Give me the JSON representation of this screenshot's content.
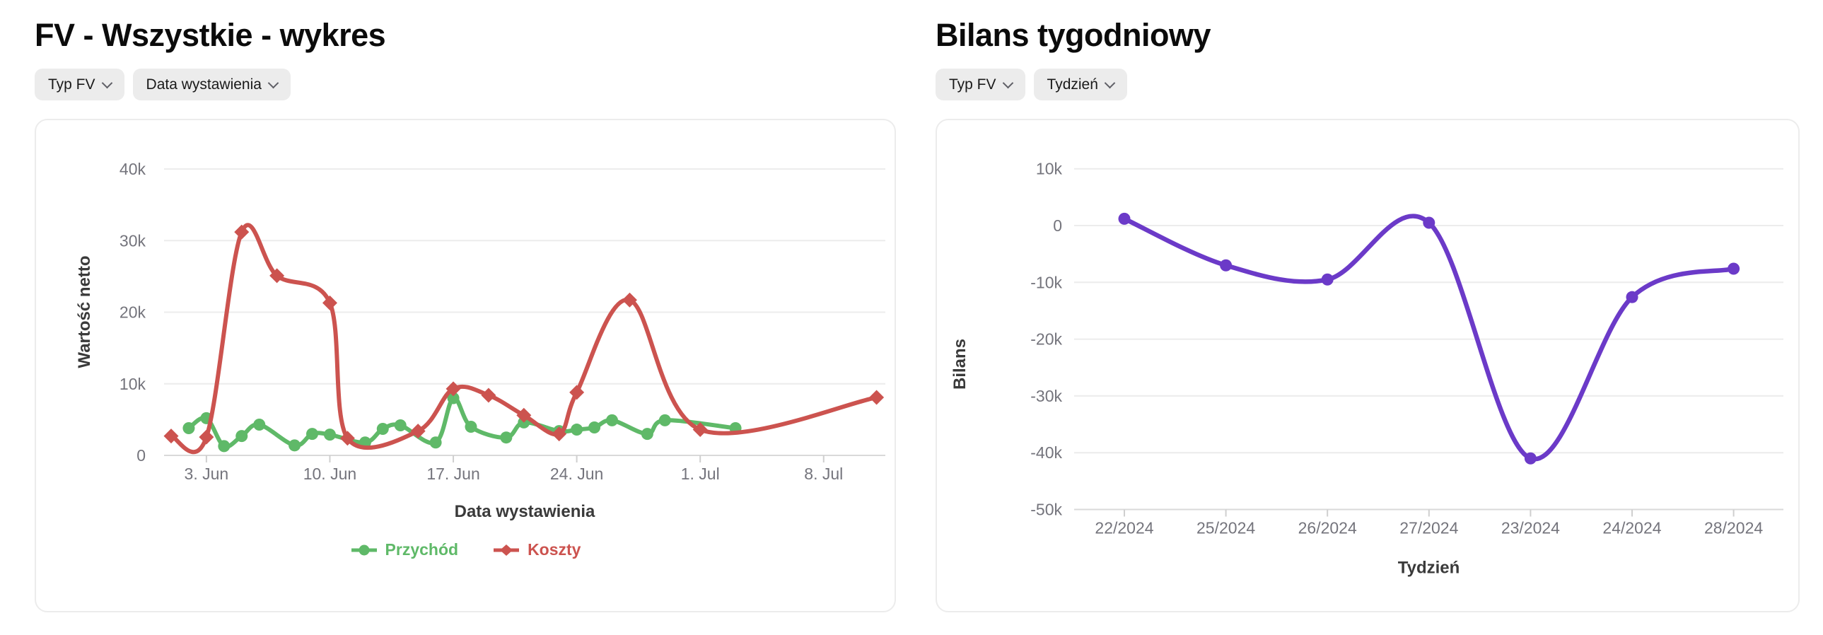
{
  "page": {
    "background": "#ffffff"
  },
  "left_panel": {
    "title": "FV - Wszystkie - wykres",
    "filters": [
      {
        "label": "Typ FV"
      },
      {
        "label": "Data wystawienia"
      }
    ]
  },
  "right_panel": {
    "title": "Bilans tygodniowy",
    "filters": [
      {
        "label": "Typ FV"
      },
      {
        "label": "Tydzień"
      }
    ]
  },
  "colors": {
    "grid": "#ececec",
    "axis_line": "#d9d9d9",
    "tick_mark": "#cfcfcf",
    "tick_text": "#74747c",
    "axis_title_text": "#3a3a3a",
    "pill_bg": "#ececec",
    "title_text": "#0b0b0b",
    "przychod_green": "#5fb968",
    "koszty_red": "#cc534f",
    "bilans_purple": "#6b3ac8"
  },
  "chart_data": [
    {
      "type": "line",
      "title": "FV - Wszystkie - wykres",
      "xlabel": "Data wystawienia",
      "ylabel": "Wartość netto",
      "smooth": true,
      "grid": "horizontal",
      "legend_position": "bottom",
      "x_axis": {
        "unit": "day-offset from 1. Jun",
        "ticks": [
          {
            "label": "3. Jun",
            "day": 2
          },
          {
            "label": "10. Jun",
            "day": 9
          },
          {
            "label": "17. Jun",
            "day": 16
          },
          {
            "label": "24. Jun",
            "day": 23
          },
          {
            "label": "1. Jul",
            "day": 30
          },
          {
            "label": "8. Jul",
            "day": 37
          }
        ]
      },
      "y_axis": {
        "ylim": [
          0,
          45000
        ],
        "ticks": [
          {
            "label": "0",
            "value": 0
          },
          {
            "label": "10k",
            "value": 10000
          },
          {
            "label": "20k",
            "value": 20000
          },
          {
            "label": "30k",
            "value": 30000
          },
          {
            "label": "40k",
            "value": 40000
          }
        ]
      },
      "series": [
        {
          "name": "Przychód",
          "color": "#5fb968",
          "marker": "circle",
          "points_day_value": [
            [
              1,
              3800
            ],
            [
              2,
              5200
            ],
            [
              3,
              1300
            ],
            [
              4,
              2700
            ],
            [
              5,
              4300
            ],
            [
              7,
              1400
            ],
            [
              8,
              3000
            ],
            [
              9,
              2900
            ],
            [
              11,
              1800
            ],
            [
              12,
              3700
            ],
            [
              13,
              4200
            ],
            [
              15,
              1800
            ],
            [
              16,
              8000
            ],
            [
              17,
              4000
            ],
            [
              19,
              2500
            ],
            [
              20,
              4600
            ],
            [
              22,
              3400
            ],
            [
              23,
              3600
            ],
            [
              24,
              3900
            ],
            [
              25,
              4900
            ],
            [
              27,
              3000
            ],
            [
              28,
              4900
            ],
            [
              32,
              3800
            ]
          ]
        },
        {
          "name": "Koszty",
          "color": "#cc534f",
          "marker": "diamond",
          "points_day_value": [
            [
              0,
              2700
            ],
            [
              2,
              2550
            ],
            [
              4,
              31200
            ],
            [
              6,
              25100
            ],
            [
              9,
              21300
            ],
            [
              10,
              2400
            ],
            [
              14,
              3400
            ],
            [
              16,
              9300
            ],
            [
              18,
              8400
            ],
            [
              20,
              5600
            ],
            [
              22,
              3000
            ],
            [
              23,
              8800
            ],
            [
              26,
              21700
            ],
            [
              30,
              3600
            ],
            [
              40,
              8100
            ]
          ]
        }
      ]
    },
    {
      "type": "line",
      "title": "Bilans tygodniowy",
      "xlabel": "Tydzień",
      "ylabel": "Bilans",
      "smooth": true,
      "color": "#6b3ac8",
      "marker": "circle",
      "categories": [
        "22/2024",
        "25/2024",
        "26/2024",
        "27/2024",
        "23/2024",
        "24/2024",
        "28/2024"
      ],
      "values": [
        1200,
        -7000,
        -9500,
        500,
        -41000,
        -12600,
        -7600
      ],
      "y_axis": {
        "ylim": [
          -50000,
          11000
        ],
        "ticks": [
          {
            "label": "10k",
            "value": 10000
          },
          {
            "label": "0",
            "value": 0
          },
          {
            "label": "-10k",
            "value": -10000
          },
          {
            "label": "-20k",
            "value": -20000
          },
          {
            "label": "-30k",
            "value": -30000
          },
          {
            "label": "-40k",
            "value": -40000
          },
          {
            "label": "-50k",
            "value": -50000
          }
        ]
      }
    }
  ]
}
